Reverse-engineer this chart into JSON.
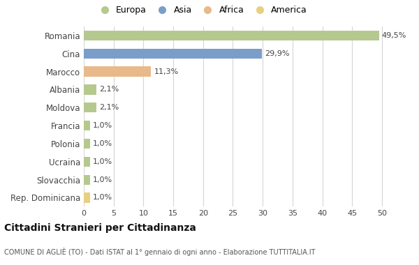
{
  "countries": [
    "Romania",
    "Cina",
    "Marocco",
    "Albania",
    "Moldova",
    "Francia",
    "Polonia",
    "Ucraina",
    "Slovacchia",
    "Rep. Dominicana"
  ],
  "values": [
    49.5,
    29.9,
    11.3,
    2.1,
    2.1,
    1.0,
    1.0,
    1.0,
    1.0,
    1.0
  ],
  "labels": [
    "49,5%",
    "29,9%",
    "11,3%",
    "2,1%",
    "2,1%",
    "1,0%",
    "1,0%",
    "1,0%",
    "1,0%",
    "1,0%"
  ],
  "colors": [
    "#b5c98e",
    "#7b9dc9",
    "#e8b98a",
    "#b5c98e",
    "#b5c98e",
    "#b5c98e",
    "#b5c98e",
    "#b5c98e",
    "#b5c98e",
    "#e8d080"
  ],
  "legend_labels": [
    "Europa",
    "Asia",
    "Africa",
    "America"
  ],
  "legend_colors": [
    "#b5c98e",
    "#7b9dc9",
    "#e8b98a",
    "#e8d080"
  ],
  "title": "Cittadini Stranieri per Cittadinanza",
  "subtitle": "COMUNE DI AGLIÈ (TO) - Dati ISTAT al 1° gennaio di ogni anno - Elaborazione TUTTITALIA.IT",
  "xlim": [
    0,
    52
  ],
  "xticks": [
    0,
    5,
    10,
    15,
    20,
    25,
    30,
    35,
    40,
    45,
    50
  ],
  "bg_color": "#ffffff",
  "grid_color": "#d5d5d5"
}
